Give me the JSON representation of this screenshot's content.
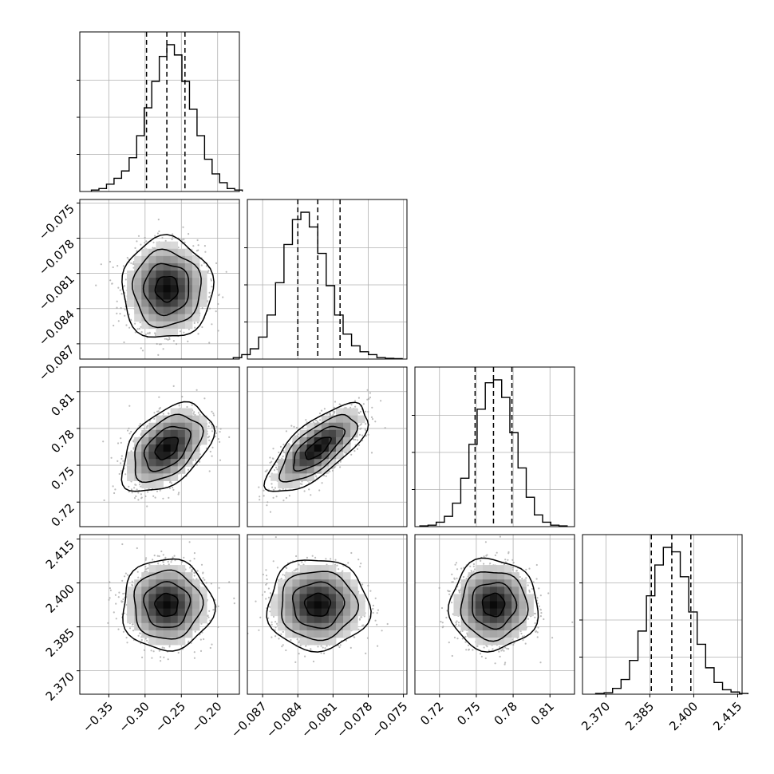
{
  "chart_data": {
    "type": "corner",
    "parameters": [
      {
        "range": [
          -0.39,
          -0.17
        ],
        "ticks": [
          -0.35,
          -0.3,
          -0.25,
          -0.2
        ],
        "tick_labels": [
          "−0.35",
          "−0.30",
          "−0.25",
          "−0.20"
        ],
        "quantiles": [
          -0.298,
          -0.27,
          -0.245
        ],
        "mean": -0.27,
        "sd": 0.026
      },
      {
        "range": [
          -0.0883,
          -0.0747
        ],
        "ticks": [
          -0.087,
          -0.084,
          -0.081,
          -0.078,
          -0.075
        ],
        "tick_labels": [
          "−0.087",
          "−0.084",
          "−0.081",
          "−0.078",
          "−0.075"
        ],
        "quantiles": [
          -0.084,
          -0.0823,
          -0.0804
        ],
        "mean": -0.0823,
        "sd": 0.0018
      },
      {
        "range": [
          0.7,
          0.83
        ],
        "ticks": [
          0.72,
          0.75,
          0.78,
          0.81
        ],
        "tick_labels": [
          "0.72",
          "0.75",
          "0.78",
          "0.81"
        ],
        "quantiles": [
          0.749,
          0.764,
          0.779
        ],
        "mean": 0.764,
        "sd": 0.015
      },
      {
        "range": [
          2.362,
          2.4165
        ],
        "ticks": [
          2.37,
          2.385,
          2.4,
          2.415
        ],
        "tick_labels": [
          "2.370",
          "2.385",
          "2.400",
          "2.415"
        ],
        "quantiles": [
          2.3855,
          2.3925,
          2.399
        ],
        "mean": 2.3925,
        "sd": 0.0065
      }
    ],
    "histograms": [
      {
        "param": 0,
        "counts": [
          0.01,
          0.02,
          0.05,
          0.09,
          0.14,
          0.23,
          0.38,
          0.57,
          0.75,
          0.92,
          1.0,
          0.93,
          0.75,
          0.56,
          0.38,
          0.22,
          0.12,
          0.06,
          0.02,
          0.01
        ]
      },
      {
        "param": 1,
        "counts": [
          0.01,
          0.03,
          0.07,
          0.15,
          0.3,
          0.52,
          0.78,
          0.95,
          1.0,
          0.9,
          0.72,
          0.5,
          0.3,
          0.17,
          0.09,
          0.05,
          0.03,
          0.01,
          0.005,
          0.003
        ]
      },
      {
        "param": 2,
        "counts": [
          0.005,
          0.01,
          0.03,
          0.07,
          0.16,
          0.33,
          0.56,
          0.8,
          0.98,
          1.0,
          0.88,
          0.64,
          0.4,
          0.2,
          0.08,
          0.03,
          0.01,
          0.005
        ]
      },
      {
        "param": 3,
        "counts": [
          0.005,
          0.01,
          0.04,
          0.1,
          0.23,
          0.43,
          0.67,
          0.88,
          1.0,
          0.97,
          0.8,
          0.56,
          0.34,
          0.18,
          0.08,
          0.03,
          0.015,
          0.005
        ]
      }
    ],
    "correlations": [
      {
        "x": 0,
        "y": 1,
        "rho": 0.0
      },
      {
        "x": 0,
        "y": 2,
        "rho": 0.45
      },
      {
        "x": 1,
        "y": 2,
        "rho": 0.72
      },
      {
        "x": 0,
        "y": 3,
        "rho": 0.0
      },
      {
        "x": 1,
        "y": 3,
        "rho": 0.0
      },
      {
        "x": 2,
        "y": 3,
        "rho": 0.0
      }
    ],
    "contour_levels_sigma": [
      0.5,
      1.0,
      1.5,
      2.0
    ],
    "quantile_line_style": "dashed",
    "grid": true,
    "colors": {
      "line": "#000000",
      "grid": "#b0b0b0",
      "points": "#a0a0a0",
      "frame": "#000000"
    }
  }
}
